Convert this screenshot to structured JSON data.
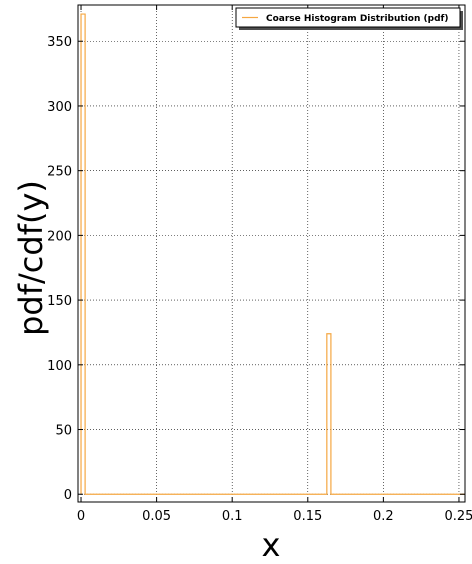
{
  "chart_data": {
    "type": "histogram-step",
    "title": "",
    "xlabel": "x",
    "ylabel": "pdf/cdf(y)",
    "xlim": [
      -0.002,
      0.254
    ],
    "ylim": [
      -6,
      378
    ],
    "x_ticks": [
      0,
      0.05,
      0.1,
      0.15,
      0.2,
      0.25
    ],
    "x_tick_labels": [
      "0",
      "0.05",
      "0.1",
      "0.15",
      "0.2",
      "0.25"
    ],
    "y_ticks": [
      0,
      50,
      100,
      150,
      200,
      250,
      300,
      350
    ],
    "y_tick_labels": [
      "0",
      "50",
      "100",
      "150",
      "200",
      "250",
      "300",
      "350"
    ],
    "grid": true,
    "legend_position": "top-right",
    "series": [
      {
        "name": "Coarse Histogram Distribution (pdf)",
        "color": "#f5a742",
        "style": "step",
        "bins": [
          {
            "x0": 0.0,
            "x1": 0.0027,
            "value": 371
          },
          {
            "x0": 0.0027,
            "x1": 0.1626,
            "value": 0
          },
          {
            "x0": 0.1626,
            "x1": 0.1653,
            "value": 124
          },
          {
            "x0": 0.1653,
            "x1": 0.254,
            "value": 0
          }
        ]
      }
    ]
  }
}
